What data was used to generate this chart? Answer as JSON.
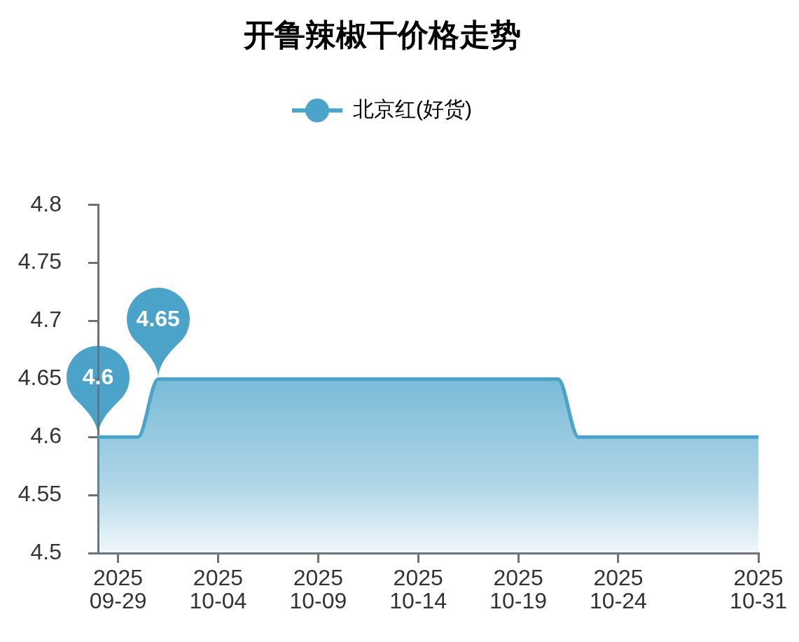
{
  "chart_data": {
    "type": "area",
    "title": "开鲁辣椒干价格走势",
    "x": [
      "2025-09-28",
      "2025-09-29",
      "2025-09-30",
      "2025-10-01",
      "2025-10-02",
      "2025-10-03",
      "2025-10-04",
      "2025-10-05",
      "2025-10-06",
      "2025-10-07",
      "2025-10-08",
      "2025-10-09",
      "2025-10-10",
      "2025-10-11",
      "2025-10-12",
      "2025-10-13",
      "2025-10-14",
      "2025-10-15",
      "2025-10-16",
      "2025-10-17",
      "2025-10-18",
      "2025-10-19",
      "2025-10-20",
      "2025-10-21",
      "2025-10-22",
      "2025-10-23",
      "2025-10-24",
      "2025-10-25",
      "2025-10-26",
      "2025-10-27",
      "2025-10-28",
      "2025-10-29",
      "2025-10-30",
      "2025-10-31"
    ],
    "series": [
      {
        "name": "北京红(好货)",
        "color": "#4ba3c9",
        "values": [
          4.6,
          4.6,
          4.6,
          4.65,
          4.65,
          4.65,
          4.65,
          4.65,
          4.65,
          4.65,
          4.65,
          4.65,
          4.65,
          4.65,
          4.65,
          4.65,
          4.65,
          4.65,
          4.65,
          4.65,
          4.65,
          4.65,
          4.65,
          4.65,
          4.6,
          4.6,
          4.6,
          4.6,
          4.6,
          4.6,
          4.6,
          4.6,
          4.6,
          4.6
        ],
        "value_labels": [
          "4.6",
          null,
          null,
          "4.65",
          null,
          null,
          null,
          null,
          null,
          null,
          null,
          null,
          null,
          null,
          null,
          null,
          null,
          null,
          null,
          null,
          null,
          null,
          null,
          null,
          null,
          null,
          null,
          null,
          null,
          null,
          null,
          null,
          null,
          null
        ]
      }
    ],
    "xlim": [
      "2025-09-28",
      "2025-10-31"
    ],
    "xticks": [
      {
        "value": "2025-09-29",
        "label": "2025\n09-29"
      },
      {
        "value": "2025-10-04",
        "label": "2025\n10-04"
      },
      {
        "value": "2025-10-09",
        "label": "2025\n10-09"
      },
      {
        "value": "2025-10-14",
        "label": "2025\n10-14"
      },
      {
        "value": "2025-10-19",
        "label": "2025\n10-19"
      },
      {
        "value": "2025-10-24",
        "label": "2025\n10-24"
      },
      {
        "value": "2025-10-31",
        "label": "2025\n10-31"
      }
    ],
    "ylim": [
      4.5,
      4.8
    ],
    "yticks": [
      4.5,
      4.55,
      4.6,
      4.65,
      4.7,
      4.75,
      4.8
    ],
    "legend": "top"
  }
}
